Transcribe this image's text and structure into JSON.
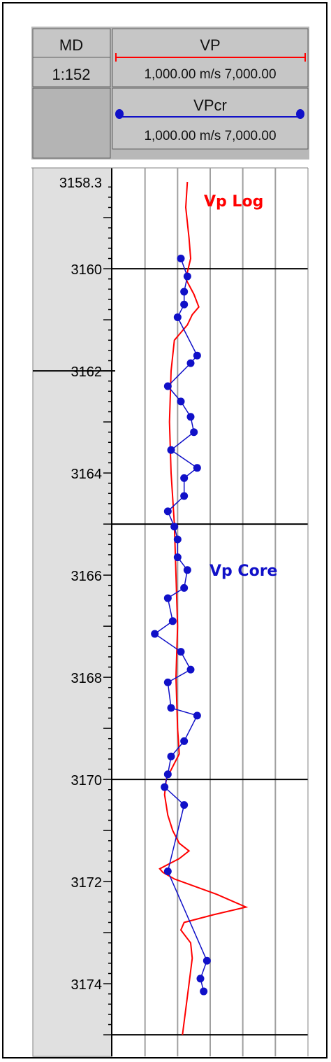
{
  "header": {
    "md_title": "MD",
    "md_scale": "1:152",
    "vp_title": "VP",
    "vp_range": "1,000.00 m/s 7,000.00",
    "vpcr_title": "VPcr",
    "vpcr_range": "1,000.00 m/s 7,000.00"
  },
  "colors": {
    "vp_log": "#ff0000",
    "vp_core": "#1010c8",
    "header_bg": "#b8b8b8",
    "depth_track_bg": "#e0e0e0",
    "grid": "#a0a0a0"
  },
  "chart_data": {
    "type": "line",
    "ylabel": "MD",
    "ylim": [
      3158.3,
      3175
    ],
    "xlim": [
      1000,
      7000
    ],
    "xunit": "m/s",
    "y_tick_labels": [
      "3158.3",
      "3160",
      "3162",
      "3164",
      "3166",
      "3168",
      "3170",
      "3172",
      "3174"
    ],
    "y_tick_values": [
      3158.3,
      3160,
      3162,
      3164,
      3166,
      3168,
      3170,
      3172,
      3174
    ],
    "annotations": [
      "Vp Log",
      "Vp Core"
    ],
    "series": [
      {
        "name": "Vp Log",
        "depth": [
          3158.3,
          3158.8,
          3159.4,
          3159.8,
          3160.2,
          3160.5,
          3160.75,
          3160.9,
          3161.1,
          3161.4,
          3162.0,
          3163.0,
          3164.0,
          3165.0,
          3166.0,
          3167.0,
          3168.0,
          3169.0,
          3169.5,
          3170.0,
          3170.3,
          3170.7,
          3171.0,
          3171.25,
          3171.4,
          3171.55,
          3171.75,
          3171.82,
          3171.95,
          3172.25,
          3172.5,
          3172.65,
          3172.8,
          3172.95,
          3173.2,
          3173.5,
          3174.0,
          3174.5,
          3175.0
        ],
        "value": [
          3300,
          3250,
          3350,
          3400,
          3250,
          3500,
          3650,
          3450,
          3300,
          2900,
          2800,
          2750,
          2800,
          2900,
          2950,
          3000,
          2950,
          3000,
          3050,
          2650,
          2600,
          2700,
          2850,
          3050,
          3350,
          3050,
          2450,
          2550,
          2900,
          4200,
          5100,
          4100,
          3200,
          3100,
          3400,
          3450,
          3350,
          3250,
          3150
        ]
      },
      {
        "name": "Vp Core",
        "depth": [
          3159.8,
          3160.15,
          3160.45,
          3160.7,
          3160.95,
          3161.7,
          3161.85,
          3162.3,
          3162.6,
          3162.9,
          3163.2,
          3163.55,
          3163.9,
          3164.1,
          3164.45,
          3164.75,
          3165.05,
          3165.3,
          3165.65,
          3165.9,
          3166.25,
          3166.45,
          3166.9,
          3167.15,
          3167.5,
          3167.85,
          3168.1,
          3168.6,
          3168.75,
          3169.25,
          3169.55,
          3169.9,
          3170.15,
          3170.5,
          3171.8,
          3173.55,
          3173.9,
          3174.15
        ],
        "value": [
          3100,
          3300,
          3200,
          3200,
          3000,
          3600,
          3400,
          2700,
          3100,
          3400,
          3500,
          2800,
          3600,
          3200,
          3200,
          2700,
          2900,
          3000,
          3000,
          3300,
          3200,
          2700,
          2850,
          2300,
          3100,
          3400,
          2700,
          2800,
          3600,
          3200,
          2800,
          2700,
          2600,
          3200,
          2700,
          3900,
          3700,
          3800
        ]
      }
    ]
  }
}
